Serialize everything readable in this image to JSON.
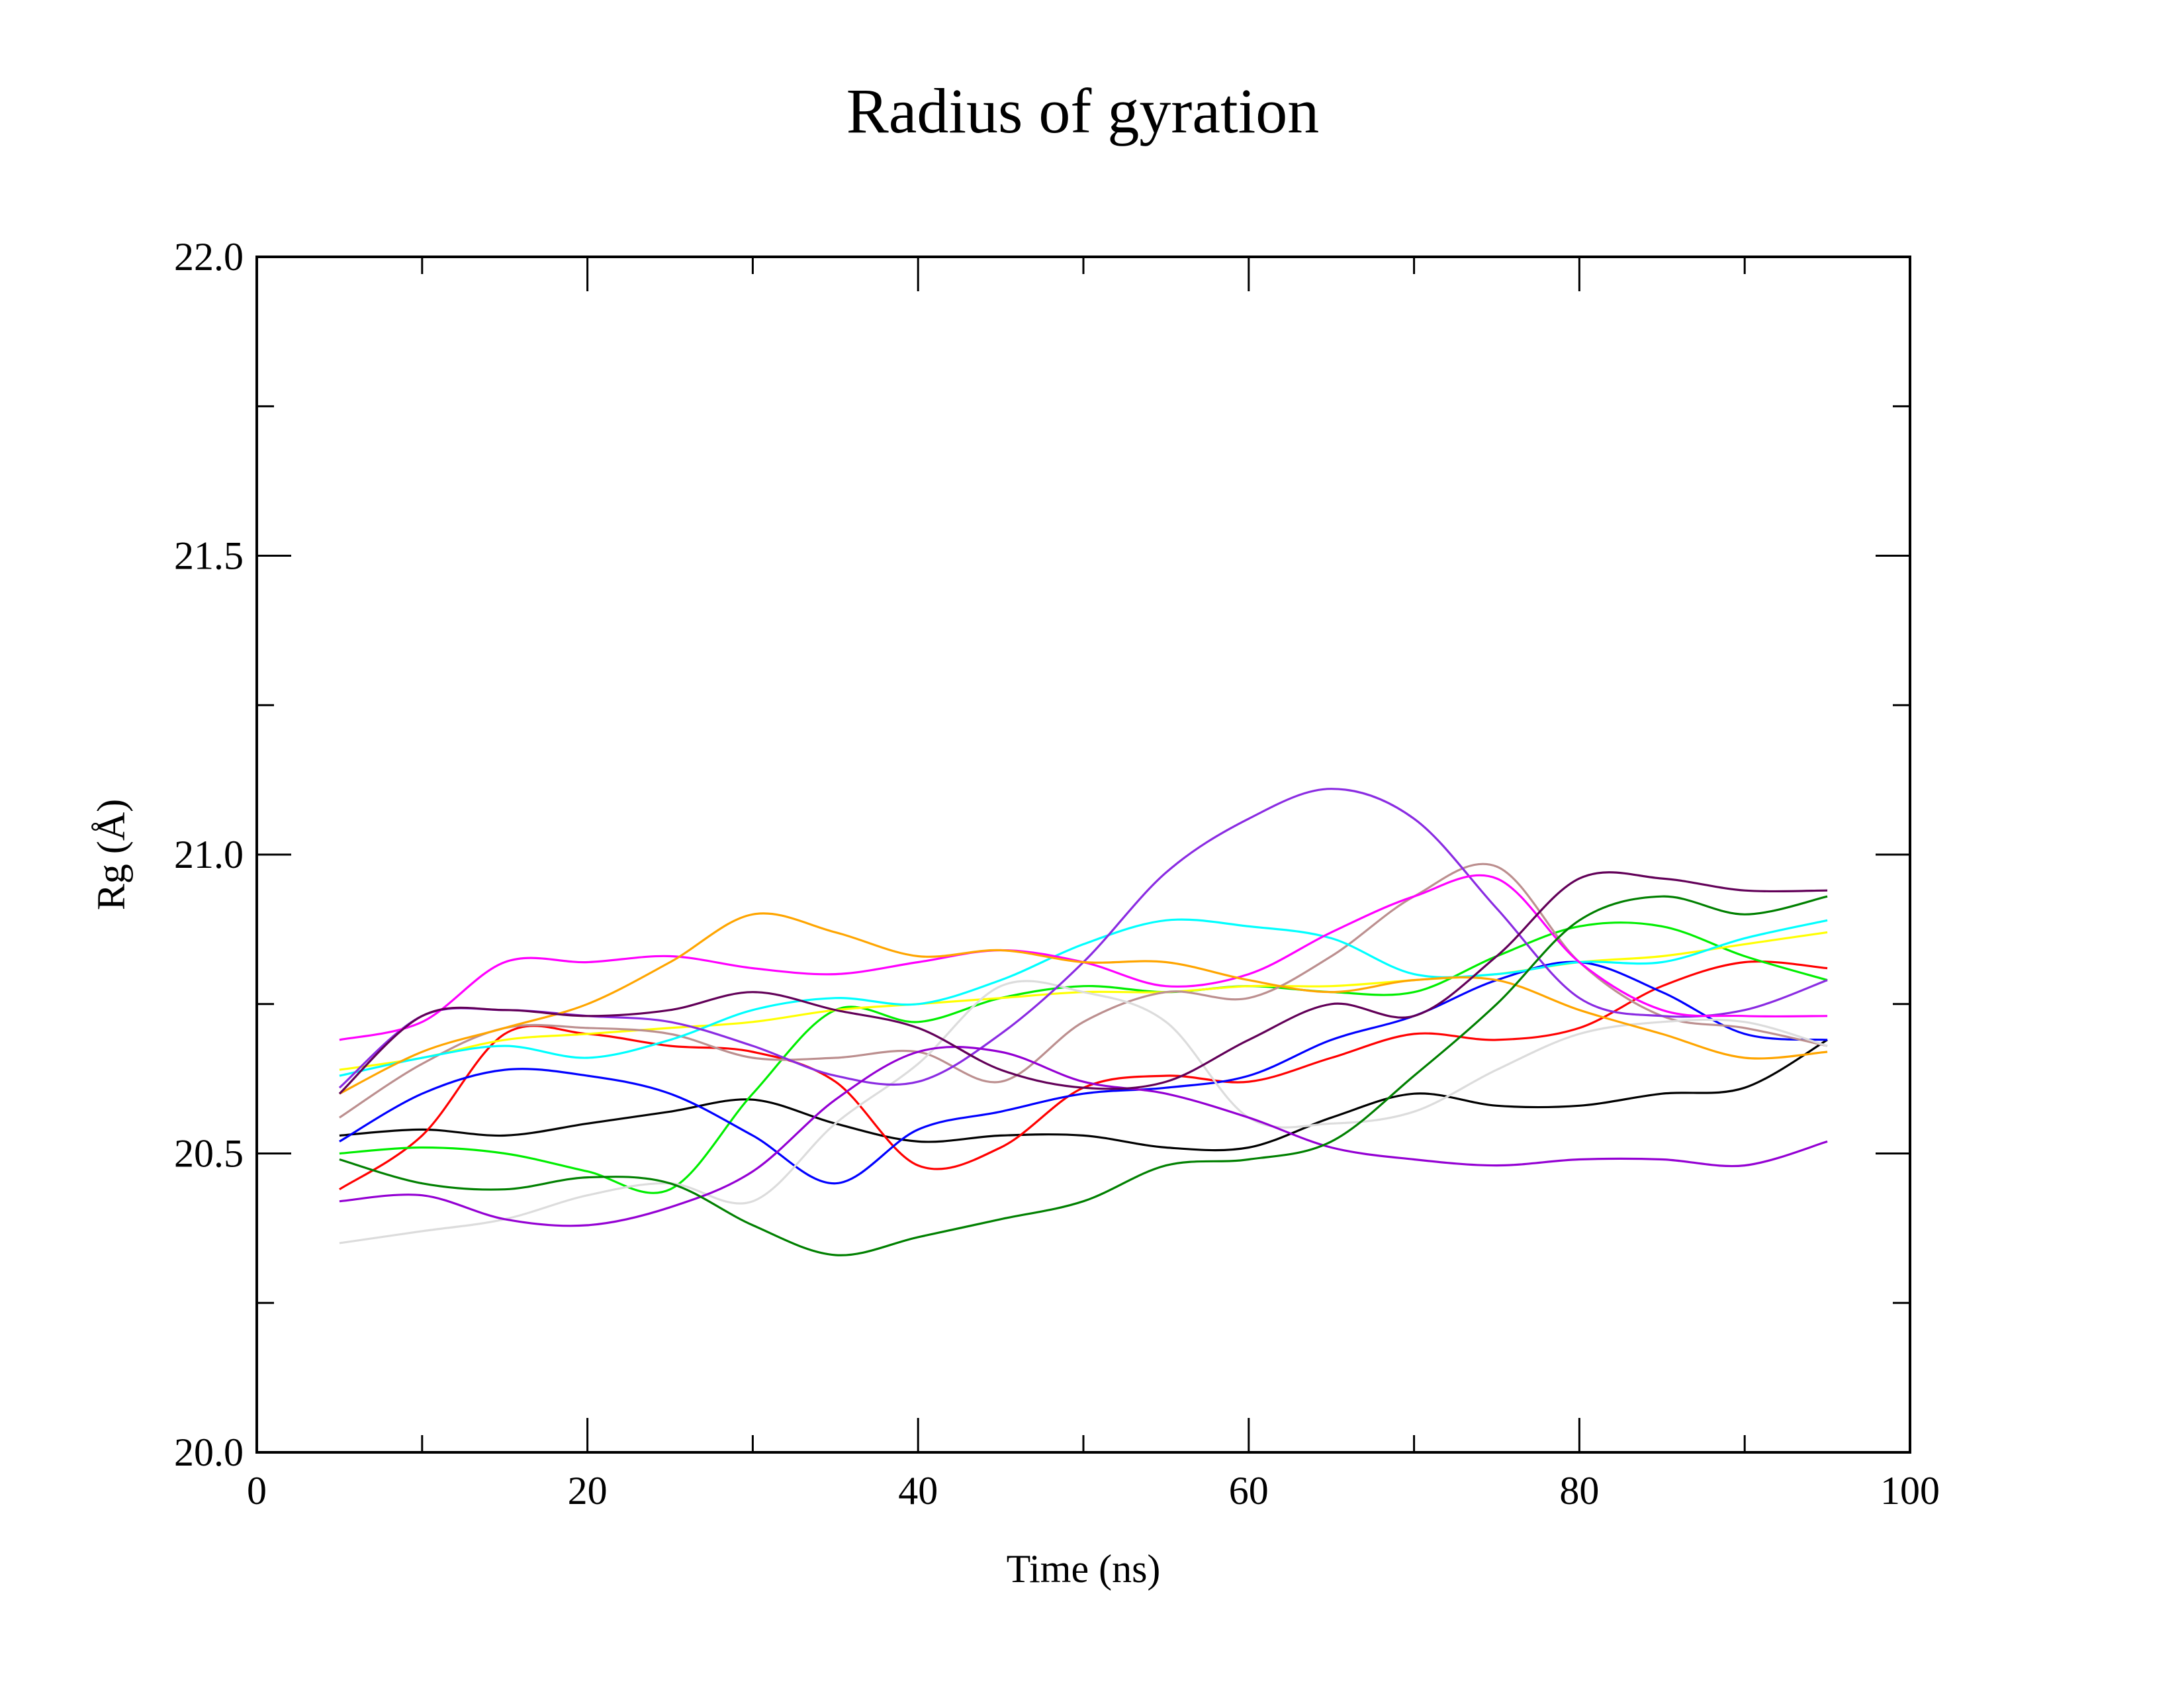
{
  "chart_data": {
    "type": "line",
    "title": "Radius of gyration",
    "xlabel": "Time (ns)",
    "ylabel": "Rg (Å)",
    "xlim": [
      0,
      100
    ],
    "ylim": [
      20.0,
      22.0
    ],
    "x_major_ticks": [
      0,
      20,
      40,
      60,
      80,
      100
    ],
    "x_minor_ticks": [
      10,
      30,
      50,
      70,
      90
    ],
    "y_major_ticks": [
      20.0,
      20.5,
      21.0,
      21.5,
      22.0
    ],
    "y_minor_ticks": [
      20.25,
      20.75,
      21.25,
      21.75
    ],
    "x_tick_labels": [
      "0",
      "20",
      "40",
      "60",
      "80",
      "100"
    ],
    "y_tick_labels": [
      "20.0",
      "20.5",
      "21.0",
      "21.5",
      "22.0"
    ],
    "grid": false,
    "legend": "none",
    "x": [
      5,
      10,
      15,
      20,
      25,
      30,
      35,
      40,
      45,
      50,
      55,
      60,
      65,
      70,
      75,
      80,
      85,
      90,
      95
    ],
    "series": [
      {
        "color": "#000000",
        "values": [
          20.53,
          20.54,
          20.53,
          20.55,
          20.57,
          20.59,
          20.55,
          20.52,
          20.53,
          20.53,
          20.51,
          20.51,
          20.56,
          20.6,
          20.58,
          20.58,
          20.6,
          20.61,
          20.69
        ]
      },
      {
        "color": "#ff0000",
        "values": [
          20.44,
          20.53,
          20.7,
          20.7,
          20.68,
          20.67,
          20.62,
          20.48,
          20.51,
          20.61,
          20.63,
          20.62,
          20.66,
          20.7,
          20.69,
          20.71,
          20.78,
          20.82,
          20.81
        ]
      },
      {
        "color": "#00ee00",
        "values": [
          20.5,
          20.51,
          20.5,
          20.47,
          20.44,
          20.6,
          20.74,
          20.72,
          20.76,
          20.78,
          20.77,
          20.78,
          20.77,
          20.77,
          20.83,
          20.88,
          20.88,
          20.83,
          20.79
        ]
      },
      {
        "color": "#0000ff",
        "values": [
          20.52,
          20.6,
          20.64,
          20.63,
          20.6,
          20.53,
          20.45,
          20.54,
          20.57,
          20.6,
          20.61,
          20.63,
          20.69,
          20.73,
          20.79,
          20.82,
          20.77,
          20.7,
          20.69
        ]
      },
      {
        "color": "#ffff00",
        "values": [
          20.64,
          20.66,
          20.69,
          20.7,
          20.71,
          20.72,
          20.74,
          20.75,
          20.76,
          20.77,
          20.77,
          20.78,
          20.78,
          20.79,
          20.8,
          20.82,
          20.83,
          20.85,
          20.87
        ]
      },
      {
        "color": "#bc8f8f",
        "values": [
          20.56,
          20.65,
          20.71,
          20.71,
          20.7,
          20.66,
          20.66,
          20.67,
          20.62,
          20.72,
          20.77,
          20.76,
          20.83,
          20.93,
          20.98,
          20.82,
          20.73,
          20.71,
          20.68
        ]
      },
      {
        "color": "#dcdcdc",
        "values": [
          20.35,
          20.37,
          20.39,
          20.43,
          20.45,
          20.42,
          20.55,
          20.65,
          20.78,
          20.77,
          20.72,
          20.56,
          20.55,
          20.57,
          20.64,
          20.7,
          20.72,
          20.72,
          20.68
        ]
      },
      {
        "color": "#00ffff",
        "values": [
          20.63,
          20.66,
          20.68,
          20.66,
          20.69,
          20.74,
          20.76,
          20.75,
          20.79,
          20.85,
          20.89,
          20.88,
          20.86,
          20.8,
          20.8,
          20.82,
          20.82,
          20.86,
          20.89
        ]
      },
      {
        "color": "#8a2be2",
        "values": [
          20.61,
          20.73,
          20.74,
          20.73,
          20.72,
          20.68,
          20.63,
          20.62,
          20.7,
          20.82,
          20.97,
          21.06,
          21.11,
          21.06,
          20.91,
          20.76,
          20.73,
          20.74,
          20.79
        ]
      },
      {
        "color": "#ff00ff",
        "values": [
          20.69,
          20.72,
          20.82,
          20.82,
          20.83,
          20.81,
          20.8,
          20.82,
          20.84,
          20.82,
          20.78,
          20.8,
          20.87,
          20.93,
          20.96,
          20.82,
          20.74,
          20.73,
          20.73
        ]
      },
      {
        "color": "#ffa500",
        "values": [
          20.6,
          20.67,
          20.71,
          20.75,
          20.82,
          20.9,
          20.87,
          20.83,
          20.84,
          20.82,
          20.82,
          20.79,
          20.77,
          20.79,
          20.79,
          20.74,
          20.7,
          20.66,
          20.67
        ]
      },
      {
        "color": "#9400d3",
        "values": [
          20.42,
          20.43,
          20.39,
          20.38,
          20.41,
          20.47,
          20.59,
          20.67,
          20.67,
          20.62,
          20.6,
          20.56,
          20.51,
          20.49,
          20.48,
          20.49,
          20.49,
          20.48,
          20.52
        ]
      },
      {
        "color": "#008000",
        "values": [
          20.49,
          20.45,
          20.44,
          20.46,
          20.45,
          20.38,
          20.33,
          20.36,
          20.39,
          20.42,
          20.48,
          20.49,
          20.52,
          20.63,
          20.75,
          20.89,
          20.93,
          20.9,
          20.93
        ]
      },
      {
        "color": "#620058",
        "values": [
          20.6,
          20.73,
          20.74,
          20.73,
          20.74,
          20.77,
          20.74,
          20.71,
          20.64,
          20.61,
          20.62,
          20.69,
          20.75,
          20.73,
          20.83,
          20.96,
          20.96,
          20.94,
          20.94
        ]
      }
    ]
  }
}
